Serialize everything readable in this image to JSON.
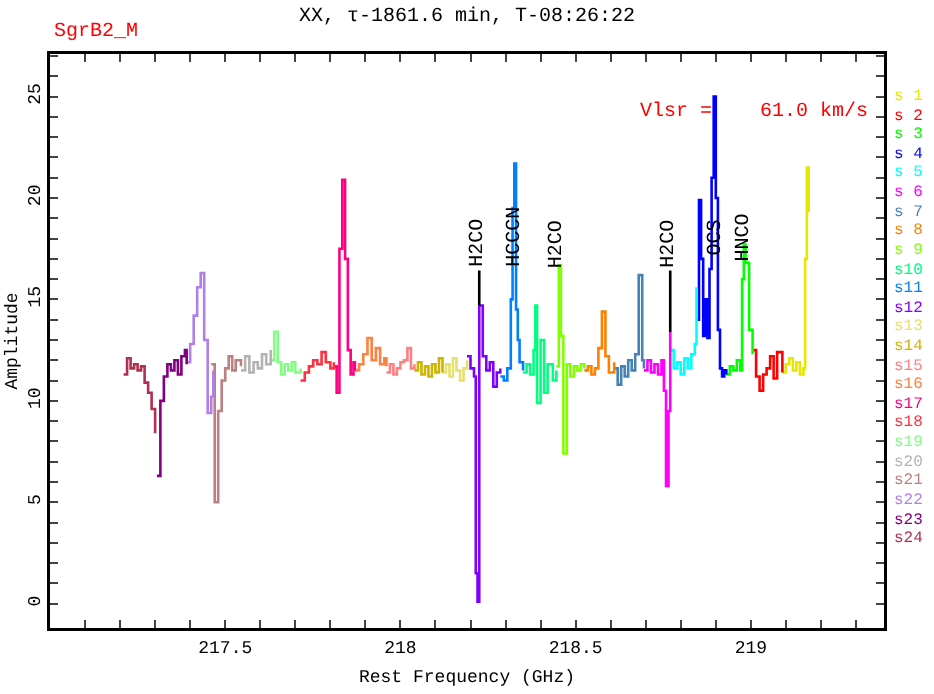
{
  "chart_data": {
    "type": "step",
    "title": "XX, τ-1861.6 min, T-08:26:22",
    "subtitle": "SgrB2_M",
    "xlabel": "Rest Frequency (GHz)",
    "ylabel": "Amplitude",
    "xlim": [
      217.0,
      219.38
    ],
    "ylim": [
      -1.2,
      27.1
    ],
    "xticks": [
      {
        "value": 217.1,
        "label": null
      },
      {
        "value": 217.2,
        "label": null
      },
      {
        "value": 217.3,
        "label": null
      },
      {
        "value": 217.4,
        "label": null
      },
      217.5,
      {
        "value": 217.6,
        "label": null
      },
      {
        "value": 217.7,
        "label": null
      },
      {
        "value": 217.8,
        "label": null
      },
      {
        "value": 217.9,
        "label": null
      },
      218,
      {
        "value": 218.1,
        "label": null
      },
      {
        "value": 218.2,
        "label": null
      },
      {
        "value": 218.3,
        "label": null
      },
      {
        "value": 218.4,
        "label": null
      },
      218.5,
      {
        "value": 218.6,
        "label": null
      },
      {
        "value": 218.7,
        "label": null
      },
      {
        "value": 218.8,
        "label": null
      },
      {
        "value": 218.9,
        "label": null
      },
      219,
      {
        "value": 219.1,
        "label": null
      },
      {
        "value": 219.2,
        "label": null
      },
      {
        "value": 219.3,
        "label": null
      }
    ],
    "yticks": [
      0,
      {
        "value": 1,
        "label": null
      },
      {
        "value": 2,
        "label": null
      },
      {
        "value": 3,
        "label": null
      },
      {
        "value": 4,
        "label": null
      },
      5,
      {
        "value": 6,
        "label": null
      },
      {
        "value": 7,
        "label": null
      },
      {
        "value": 8,
        "label": null
      },
      {
        "value": 9,
        "label": null
      },
      10,
      {
        "value": 11,
        "label": null
      },
      {
        "value": 12,
        "label": null
      },
      {
        "value": 13,
        "label": null
      },
      {
        "value": 14,
        "label": null
      },
      15,
      {
        "value": 16,
        "label": null
      },
      {
        "value": 17,
        "label": null
      },
      {
        "value": 18,
        "label": null
      },
      {
        "value": 19,
        "label": null
      },
      20,
      {
        "value": 21,
        "label": null
      },
      {
        "value": 22,
        "label": null
      },
      {
        "value": 23,
        "label": null
      },
      {
        "value": 24,
        "label": null
      },
      25,
      {
        "value": 26,
        "label": null
      },
      {
        "value": 27,
        "label": null
      }
    ],
    "grid": false,
    "legend": "right",
    "marker": "none",
    "line_style": "solid",
    "annotations": [
      {
        "text": "H2CO",
        "x": 218.225,
        "y": 14.7
      },
      {
        "text": "HCCCN",
        "x": 218.33,
        "y": 17.7
      },
      {
        "text": "H2CO",
        "x": 218.452,
        "y": 16.7
      },
      {
        "text": "H2CO",
        "x": 218.77,
        "y": 13.4
      },
      {
        "text": "OCS",
        "x": 218.903,
        "y": 17.7
      },
      {
        "text": "HNCO",
        "x": 218.983,
        "y": 17.7
      },
      "Vlsr =    61.0 km/s"
    ],
    "series": [
      {
        "name": "s 1",
        "color": "#e6e600",
        "x": [
          219.09,
          219.1,
          219.11,
          219.12,
          219.13,
          219.14,
          219.15,
          219.155,
          219.16,
          219.165
        ],
        "values": [
          11.4,
          11.8,
          12.1,
          11.5,
          11.9,
          11.3,
          11.6,
          17.0,
          21.5,
          19.3
        ]
      },
      {
        "name": "s 2",
        "color": "#ff0000",
        "x": [
          219.005,
          219.015,
          219.025,
          219.035,
          219.045,
          219.055,
          219.065,
          219.075,
          219.09
        ],
        "values": [
          12.5,
          11.2,
          10.5,
          11.3,
          11.6,
          12.2,
          11.1,
          12.4,
          11.4
        ]
      },
      {
        "name": "s 3",
        "color": "#00ff00",
        "x": [
          218.93,
          218.94,
          218.95,
          218.96,
          218.97,
          218.975,
          218.98,
          218.985,
          218.995,
          219.005
        ],
        "values": [
          11.3,
          11.7,
          11.5,
          12.0,
          11.5,
          16.0,
          17.7,
          16.8,
          13.5,
          12.3
        ]
      },
      {
        "name": "s 4",
        "color": "#0000ff",
        "x": [
          218.845,
          218.852,
          218.858,
          218.864,
          218.87,
          218.876,
          218.882,
          218.888,
          218.894,
          218.9,
          218.906,
          218.912,
          218.918,
          218.924,
          218.93
        ],
        "values": [
          14.0,
          19.9,
          17.0,
          13.2,
          15.0,
          13.1,
          16.5,
          21.0,
          25.0,
          20.0,
          13.5,
          11.6,
          11.2,
          11.5,
          11.3
        ]
      },
      {
        "name": "s 5",
        "color": "#00ffff",
        "x": [
          218.77,
          218.78,
          218.79,
          218.8,
          218.81,
          218.82,
          218.83,
          218.84,
          218.845
        ],
        "values": [
          12.5,
          11.6,
          11.9,
          11.3,
          12.1,
          11.6,
          12.3,
          12.8,
          15.6
        ]
      },
      {
        "name": "s 6",
        "color": "#ff00ff",
        "x": [
          218.695,
          218.705,
          218.715,
          218.725,
          218.735,
          218.745,
          218.752,
          218.758,
          218.765,
          218.77
        ],
        "values": [
          11.5,
          12.0,
          11.4,
          11.8,
          11.3,
          12.0,
          10.5,
          5.8,
          9.5,
          13.4
        ]
      },
      {
        "name": "s 7",
        "color": "#4682b4",
        "x": [
          218.61,
          218.62,
          218.63,
          218.64,
          218.65,
          218.66,
          218.67,
          218.68,
          218.69,
          218.695
        ],
        "values": [
          11.6,
          10.8,
          11.7,
          11.2,
          12.0,
          11.5,
          12.3,
          16.2,
          12.0,
          11.6
        ]
      },
      {
        "name": "s 8",
        "color": "#ff8000",
        "x": [
          218.525,
          218.535,
          218.545,
          218.555,
          218.565,
          218.575,
          218.585,
          218.595,
          218.61
        ],
        "values": [
          11.5,
          11.7,
          11.3,
          11.6,
          12.6,
          14.4,
          12.2,
          11.4,
          11.9
        ]
      },
      {
        "name": "s 9",
        "color": "#80ff00",
        "x": [
          218.445,
          218.452,
          218.458,
          218.465,
          218.475,
          218.485,
          218.495,
          218.505,
          218.515,
          218.525
        ],
        "values": [
          11.7,
          16.7,
          13.2,
          7.4,
          11.8,
          11.2,
          11.7,
          11.5,
          11.8,
          11.6
        ]
      },
      {
        "name": "s10",
        "color": "#00ff80",
        "x": [
          218.35,
          218.36,
          218.37,
          218.38,
          218.385,
          218.39,
          218.4,
          218.41,
          218.42,
          218.435,
          218.445
        ],
        "values": [
          11.4,
          11.8,
          11.3,
          12.5,
          14.7,
          9.9,
          13.0,
          10.4,
          11.8,
          11.0,
          11.5
        ]
      },
      {
        "name": "s11",
        "color": "#0080ff",
        "x": [
          218.285,
          218.295,
          218.305,
          218.315,
          218.32,
          218.325,
          218.33,
          218.335,
          218.34,
          218.35
        ],
        "values": [
          11.2,
          11.0,
          11.6,
          15.0,
          19.5,
          21.7,
          14.5,
          13.0,
          11.9,
          11.5
        ]
      },
      {
        "name": "s12",
        "color": "#8000ff",
        "x": [
          218.19,
          218.2,
          218.21,
          218.215,
          218.22,
          218.225,
          218.235,
          218.245,
          218.255,
          218.265,
          218.275,
          218.285
        ],
        "values": [
          12.2,
          11.6,
          11.2,
          1.5,
          0.1,
          14.7,
          12.2,
          11.5,
          11.9,
          10.7,
          11.4,
          11.6
        ]
      },
      {
        "name": "s13",
        "color": "#e6e070",
        "x": [
          218.12,
          218.13,
          218.14,
          218.15,
          218.16,
          218.17,
          218.18,
          218.19
        ],
        "values": [
          11.4,
          11.8,
          11.2,
          12.1,
          11.5,
          11.0,
          11.6,
          12.0
        ]
      },
      {
        "name": "s14",
        "color": "#ccb400",
        "x": [
          218.04,
          218.05,
          218.06,
          218.07,
          218.08,
          218.09,
          218.1,
          218.11,
          218.12
        ],
        "values": [
          11.5,
          11.9,
          11.3,
          11.7,
          11.2,
          11.8,
          11.4,
          12.1,
          11.4
        ]
      },
      {
        "name": "s15",
        "color": "#ff8080",
        "x": [
          217.96,
          217.97,
          217.98,
          217.99,
          218.0,
          218.01,
          218.02,
          218.03,
          218.04
        ],
        "values": [
          11.4,
          11.8,
          11.3,
          11.6,
          11.9,
          12.0,
          12.6,
          11.6,
          11.8
        ]
      },
      {
        "name": "s16",
        "color": "#ff8040",
        "x": [
          217.87,
          217.882,
          217.894,
          217.906,
          217.918,
          217.93,
          217.942,
          217.954,
          217.96
        ],
        "values": [
          11.5,
          11.8,
          12.3,
          13.1,
          12.0,
          12.6,
          11.8,
          12.1,
          11.7
        ]
      },
      {
        "name": "s17",
        "color": "#ff0080",
        "x": [
          217.81,
          217.818,
          217.826,
          217.834,
          217.842,
          217.85,
          217.858,
          217.866,
          217.87
        ],
        "values": [
          11.7,
          10.4,
          17.5,
          20.9,
          17.0,
          12.5,
          11.3,
          11.9,
          11.5
        ]
      },
      {
        "name": "s18",
        "color": "#ff3040",
        "x": [
          217.715,
          217.727,
          217.739,
          217.751,
          217.763,
          217.775,
          217.787,
          217.8,
          217.81
        ],
        "values": [
          11.0,
          11.4,
          11.7,
          12.0,
          11.8,
          12.4,
          11.9,
          11.6,
          11.9
        ]
      },
      {
        "name": "s19",
        "color": "#80ff80",
        "x": [
          217.63,
          217.64,
          217.65,
          217.66,
          217.67,
          217.68,
          217.69,
          217.7,
          217.715
        ],
        "values": [
          12.0,
          13.4,
          11.9,
          11.3,
          11.8,
          11.5,
          11.9,
          11.4,
          11.6
        ]
      },
      {
        "name": "s20",
        "color": "#b3b3b3",
        "x": [
          217.545,
          217.557,
          217.569,
          217.581,
          217.593,
          217.605,
          217.617,
          217.63
        ],
        "values": [
          11.5,
          12.2,
          11.4,
          11.9,
          11.6,
          12.3,
          11.8,
          12.5
        ]
      },
      {
        "name": "s21",
        "color": "#bc8080",
        "x": [
          217.46,
          217.47,
          217.48,
          217.49,
          217.5,
          217.51,
          217.52,
          217.53,
          217.545
        ],
        "values": [
          11.8,
          5.0,
          9.5,
          11.0,
          11.6,
          12.2,
          11.5,
          12.0,
          11.7
        ]
      },
      {
        "name": "s22",
        "color": "#b080e8",
        "x": [
          217.39,
          217.4,
          217.41,
          217.42,
          217.43,
          217.44,
          217.45,
          217.46,
          217.466
        ],
        "values": [
          11.9,
          12.8,
          14.2,
          15.6,
          16.3,
          13.0,
          9.4,
          10.2,
          11.5
        ]
      },
      {
        "name": "s23",
        "color": "#800080",
        "x": [
          217.305,
          217.315,
          217.325,
          217.335,
          217.345,
          217.355,
          217.365,
          217.375,
          217.385,
          217.39
        ],
        "values": [
          6.3,
          10.0,
          11.2,
          11.8,
          11.5,
          12.0,
          11.3,
          12.2,
          12.5,
          11.8
        ]
      },
      {
        "name": "s24",
        "color": "#b03050",
        "x": [
          217.21,
          217.22,
          217.23,
          217.24,
          217.25,
          217.26,
          217.27,
          217.28,
          217.29,
          217.3
        ],
        "values": [
          11.3,
          12.1,
          11.6,
          11.8,
          11.5,
          11.7,
          10.9,
          10.4,
          9.6,
          8.4
        ]
      }
    ]
  }
}
